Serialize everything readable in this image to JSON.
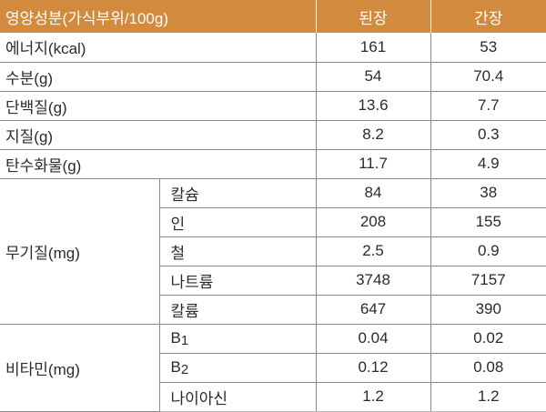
{
  "table": {
    "header": {
      "label": "영양성분(가식부위/100g)",
      "col1": "된장",
      "col2": "간장"
    },
    "simple_rows": [
      {
        "name": "에너지(kcal)",
        "doenjang": "161",
        "ganjang": "53"
      },
      {
        "name": "수분(g)",
        "doenjang": "54",
        "ganjang": "70.4"
      },
      {
        "name": "단백질(g)",
        "doenjang": "13.6",
        "ganjang": "7.7"
      },
      {
        "name": "지질(g)",
        "doenjang": "8.2",
        "ganjang": "0.3"
      },
      {
        "name": "탄수화물(g)",
        "doenjang": "11.7",
        "ganjang": "4.9"
      }
    ],
    "minerals": {
      "group": "무기질(mg)",
      "rows": [
        {
          "name": "칼슘",
          "doenjang": "84",
          "ganjang": "38"
        },
        {
          "name": "인",
          "doenjang": "208",
          "ganjang": "155"
        },
        {
          "name": "철",
          "doenjang": "2.5",
          "ganjang": "0.9"
        },
        {
          "name": "나트륨",
          "doenjang": "3748",
          "ganjang": "7157"
        },
        {
          "name": "칼륨",
          "doenjang": "647",
          "ganjang": "390"
        }
      ]
    },
    "vitamins": {
      "group": "비타민(mg)",
      "rows": [
        {
          "name": "B",
          "sub": "1",
          "doenjang": "0.04",
          "ganjang": "0.02"
        },
        {
          "name": "B",
          "sub": "2",
          "doenjang": "0.12",
          "ganjang": "0.08"
        },
        {
          "name": "나이아신",
          "sub": "",
          "doenjang": "1.2",
          "ganjang": "1.2"
        }
      ]
    }
  },
  "colors": {
    "header_background": "#d28a3e",
    "header_text": "#ffffff",
    "rule": "#8a8a8a"
  }
}
